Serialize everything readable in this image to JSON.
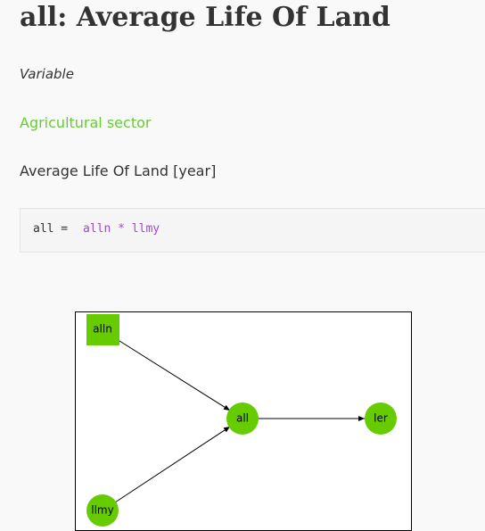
{
  "header": {
    "title": "all: Average Life Of Land"
  },
  "kind": "Variable",
  "sector": "Agricultural sector",
  "description": "Average Life Of Land [year]",
  "equation": {
    "lhs": "all =",
    "rhs": "alln * llmy"
  },
  "graph": {
    "nodes": [
      {
        "label": "alln"
      },
      {
        "label": "all"
      },
      {
        "label": "ler"
      },
      {
        "label": "llmy"
      }
    ]
  }
}
